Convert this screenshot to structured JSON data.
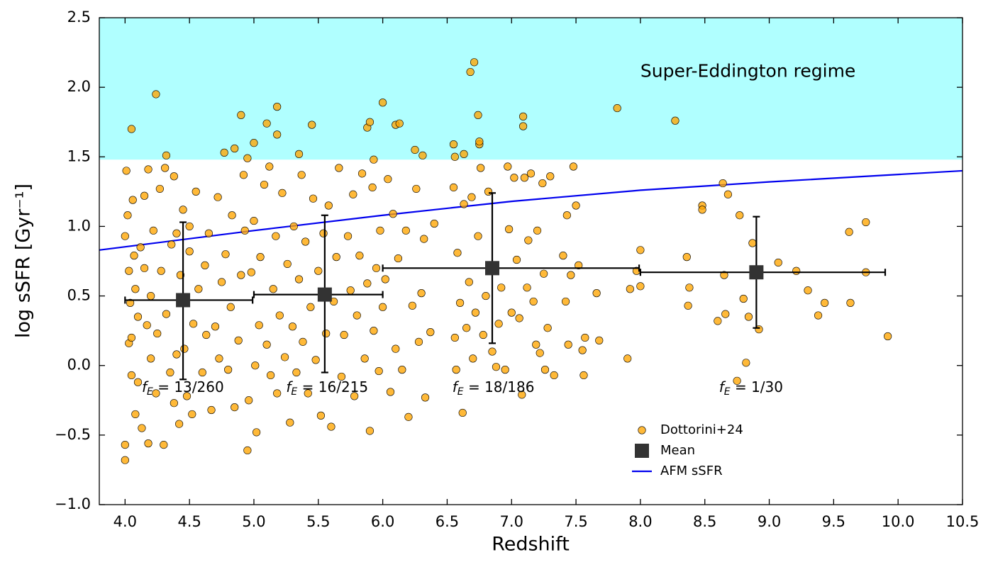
{
  "chart_data": {
    "type": "scatter",
    "xlabel": "Redshift",
    "ylabel": "log  sSFR [Gyr⁻¹]",
    "xlim": [
      3.8,
      10.5
    ],
    "ylim": [
      -1.0,
      2.5
    ],
    "xticks": [
      {
        "value": 4.0,
        "label": "4.0"
      },
      {
        "value": 4.5,
        "label": "4.5"
      },
      {
        "value": 5.0,
        "label": "5.0"
      },
      {
        "value": 5.5,
        "label": "5.5"
      },
      {
        "value": 6.0,
        "label": "6.0"
      },
      {
        "value": 6.5,
        "label": "6.5"
      },
      {
        "value": 7.0,
        "label": "7.0"
      },
      {
        "value": 7.5,
        "label": "7.5"
      },
      {
        "value": 8.0,
        "label": "8.0"
      },
      {
        "value": 8.5,
        "label": "8.5"
      },
      {
        "value": 9.0,
        "label": "9.0"
      },
      {
        "value": 9.5,
        "label": "9.5"
      },
      {
        "value": 10.0,
        "label": "10.0"
      },
      {
        "value": 10.5,
        "label": "10.5"
      }
    ],
    "yticks": [
      {
        "value": -1.0,
        "label": "−1.0"
      },
      {
        "value": -0.5,
        "label": "−0.5"
      },
      {
        "value": 0.0,
        "label": "0.0"
      },
      {
        "value": 0.5,
        "label": "0.5"
      },
      {
        "value": 1.0,
        "label": "1.0"
      },
      {
        "value": 1.5,
        "label": "1.5"
      },
      {
        "value": 2.0,
        "label": "2.0"
      },
      {
        "value": 2.5,
        "label": "2.5"
      }
    ],
    "grid": false,
    "legend": "lower right",
    "region": {
      "ymin": 1.48,
      "ymax": 2.5,
      "color": "#b0ffff",
      "label": "Super-Eddington regime",
      "label_x": 8.0,
      "label_y": 2.11
    },
    "annotations": [
      {
        "symbol": "f",
        "subscript": "E",
        "text": " = 13/260",
        "x": 4.13,
        "y": -0.16
      },
      {
        "symbol": "f",
        "subscript": "E",
        "text": " = 16/215",
        "x": 5.25,
        "y": -0.16
      },
      {
        "symbol": "f",
        "subscript": "E",
        "text": " = 18/186",
        "x": 6.54,
        "y": -0.16
      },
      {
        "symbol": "f",
        "subscript": "E",
        "text": " = 1/30",
        "x": 8.61,
        "y": -0.16
      }
    ],
    "series": [
      {
        "name": "Dottorini+24",
        "color": "#ffa500",
        "x": [
          4.05,
          4.24,
          4.32,
          4.77,
          4.85,
          4.9,
          4.95,
          5.0,
          5.1,
          5.18,
          5.18,
          5.35,
          5.45,
          5.88,
          5.9,
          5.93,
          6.0,
          6.1,
          6.13,
          6.25,
          6.31,
          6.55,
          6.56,
          6.63,
          6.68,
          6.71,
          6.74,
          6.75,
          6.75,
          7.09,
          7.09,
          7.82,
          8.27,
          7.9,
          7.92,
          8.0,
          8.0,
          7.97,
          8.36,
          8.37,
          8.38,
          8.48,
          8.48,
          8.6,
          8.64,
          8.66,
          8.65,
          8.68,
          8.75,
          8.77,
          8.8,
          8.82,
          8.84,
          8.87,
          8.92,
          9.07,
          9.21,
          9.3,
          9.38,
          9.43,
          9.62,
          9.63,
          9.75,
          9.75,
          9.92,
          4.0,
          4.0,
          4.0,
          4.01,
          4.02,
          4.03,
          4.03,
          4.04,
          4.05,
          4.05,
          4.06,
          4.07,
          4.08,
          4.08,
          4.1,
          4.1,
          4.12,
          4.13,
          4.15,
          4.15,
          4.17,
          4.18,
          4.18,
          4.2,
          4.2,
          4.22,
          4.24,
          4.25,
          4.27,
          4.28,
          4.3,
          4.31,
          4.32,
          4.35,
          4.36,
          4.38,
          4.38,
          4.4,
          4.4,
          4.42,
          4.43,
          4.45,
          4.46,
          4.48,
          4.5,
          4.5,
          4.52,
          4.53,
          4.55,
          4.57,
          4.6,
          4.62,
          4.63,
          4.65,
          4.67,
          4.7,
          4.72,
          4.73,
          4.75,
          4.78,
          4.8,
          4.82,
          4.83,
          4.85,
          4.88,
          4.9,
          4.92,
          4.93,
          4.95,
          4.96,
          4.98,
          5.0,
          5.01,
          5.02,
          5.04,
          5.05,
          5.08,
          5.1,
          5.12,
          5.13,
          5.15,
          5.17,
          5.18,
          5.2,
          5.22,
          5.24,
          5.26,
          5.28,
          5.3,
          5.31,
          5.33,
          5.35,
          5.37,
          5.38,
          5.4,
          5.42,
          5.44,
          5.46,
          5.48,
          5.5,
          5.52,
          5.54,
          5.56,
          5.58,
          5.6,
          5.62,
          5.64,
          5.66,
          5.68,
          5.7,
          5.73,
          5.75,
          5.77,
          5.78,
          5.8,
          5.82,
          5.84,
          5.86,
          5.88,
          5.9,
          5.92,
          5.93,
          5.95,
          5.97,
          5.98,
          6.0,
          6.02,
          6.04,
          6.06,
          6.08,
          6.1,
          6.12,
          6.15,
          6.18,
          6.2,
          6.23,
          6.26,
          6.28,
          6.3,
          6.32,
          6.33,
          6.37,
          6.4,
          6.55,
          6.56,
          6.57,
          6.58,
          6.6,
          6.62,
          6.63,
          6.65,
          6.67,
          6.69,
          6.7,
          6.72,
          6.74,
          6.76,
          6.78,
          6.8,
          6.82,
          6.85,
          6.88,
          6.9,
          6.92,
          6.95,
          6.97,
          6.98,
          7.0,
          7.02,
          7.04,
          7.06,
          7.08,
          7.1,
          7.12,
          7.13,
          7.15,
          7.17,
          7.19,
          7.2,
          7.22,
          7.24,
          7.25,
          7.26,
          7.28,
          7.3,
          7.33,
          7.4,
          7.42,
          7.43,
          7.44,
          7.46,
          7.48,
          7.5,
          7.52,
          7.55,
          7.56,
          7.57,
          7.66,
          7.68
        ],
        "y": [
          1.7,
          1.95,
          1.51,
          1.53,
          1.56,
          1.8,
          1.49,
          1.6,
          1.74,
          1.86,
          1.66,
          1.52,
          1.73,
          1.71,
          1.75,
          1.48,
          1.89,
          1.73,
          1.74,
          1.55,
          1.51,
          1.59,
          1.5,
          1.52,
          2.11,
          2.18,
          1.8,
          1.59,
          1.61,
          1.79,
          1.72,
          1.85,
          1.76,
          0.05,
          0.55,
          0.57,
          0.83,
          0.68,
          0.78,
          0.43,
          0.56,
          1.15,
          1.12,
          0.32,
          1.31,
          0.37,
          0.65,
          1.23,
          -0.11,
          1.08,
          0.48,
          0.02,
          0.35,
          0.88,
          0.26,
          0.74,
          0.68,
          0.54,
          0.36,
          0.45,
          0.96,
          0.45,
          1.03,
          0.67,
          0.21,
          -0.57,
          -0.68,
          0.93,
          1.4,
          1.08,
          0.68,
          0.16,
          0.45,
          -0.07,
          0.2,
          1.19,
          0.79,
          -0.35,
          0.55,
          0.35,
          -0.12,
          0.85,
          -0.45,
          0.7,
          1.22,
          0.29,
          -0.56,
          1.41,
          0.5,
          0.05,
          0.97,
          -0.2,
          0.23,
          1.27,
          0.68,
          -0.57,
          1.42,
          0.37,
          -0.05,
          0.87,
          -0.27,
          1.36,
          0.95,
          0.08,
          -0.42,
          0.65,
          1.12,
          0.12,
          -0.22,
          0.82,
          1.0,
          -0.35,
          0.3,
          1.25,
          0.55,
          -0.05,
          0.72,
          0.22,
          0.95,
          -0.32,
          0.28,
          1.21,
          0.05,
          0.6,
          0.8,
          -0.03,
          0.42,
          1.08,
          -0.3,
          0.18,
          0.65,
          1.37,
          0.97,
          -0.61,
          -0.25,
          0.67,
          1.04,
          0.0,
          -0.48,
          0.29,
          0.78,
          1.3,
          0.15,
          1.43,
          -0.07,
          0.55,
          0.93,
          -0.2,
          0.36,
          1.24,
          0.06,
          0.73,
          -0.41,
          0.28,
          1.0,
          -0.05,
          0.62,
          1.37,
          0.17,
          0.89,
          -0.2,
          0.42,
          1.2,
          0.04,
          0.68,
          -0.36,
          0.95,
          0.23,
          1.15,
          -0.44,
          0.46,
          0.78,
          1.42,
          -0.08,
          0.22,
          0.93,
          0.54,
          1.23,
          -0.22,
          0.36,
          0.79,
          1.38,
          0.05,
          0.59,
          -0.47,
          1.28,
          0.25,
          0.7,
          -0.04,
          0.97,
          0.42,
          0.62,
          1.34,
          -0.19,
          1.09,
          0.12,
          0.77,
          -0.03,
          0.97,
          -0.37,
          0.43,
          1.27,
          0.17,
          0.52,
          0.91,
          -0.23,
          0.24,
          1.02,
          1.28,
          0.2,
          -0.03,
          0.81,
          0.45,
          -0.34,
          1.16,
          0.27,
          0.6,
          1.21,
          0.05,
          0.38,
          0.93,
          1.42,
          0.22,
          0.5,
          1.25,
          0.1,
          -0.01,
          0.3,
          0.56,
          -0.03,
          1.43,
          0.98,
          0.38,
          1.35,
          0.76,
          0.34,
          -0.21,
          1.35,
          0.56,
          0.9,
          1.38,
          0.46,
          0.15,
          0.97,
          0.09,
          1.31,
          0.66,
          -0.03,
          0.27,
          1.36,
          -0.07,
          0.79,
          0.46,
          1.08,
          0.15,
          0.65,
          1.43,
          1.15,
          0.72,
          0.11,
          -0.07,
          0.2,
          0.52,
          0.18
        ]
      },
      {
        "name": "Mean",
        "color": "#333333",
        "x": [
          4.45,
          5.55,
          6.85,
          8.9
        ],
        "y": [
          0.47,
          0.51,
          0.7,
          0.67
        ],
        "xmin": [
          4.0,
          5.0,
          6.0,
          8.0
        ],
        "xmax": [
          4.99,
          6.0,
          7.99,
          9.9
        ],
        "ymin": [
          -0.1,
          -0.05,
          0.16,
          0.27
        ],
        "ymax": [
          1.03,
          1.08,
          1.24,
          1.07
        ]
      },
      {
        "name": "AFM sSFR",
        "color": "#0000ee",
        "x": [
          3.8,
          5.0,
          6.0,
          7.0,
          8.0,
          9.0,
          10.5
        ],
        "y": [
          0.83,
          0.97,
          1.08,
          1.18,
          1.26,
          1.32,
          1.4
        ]
      }
    ]
  }
}
